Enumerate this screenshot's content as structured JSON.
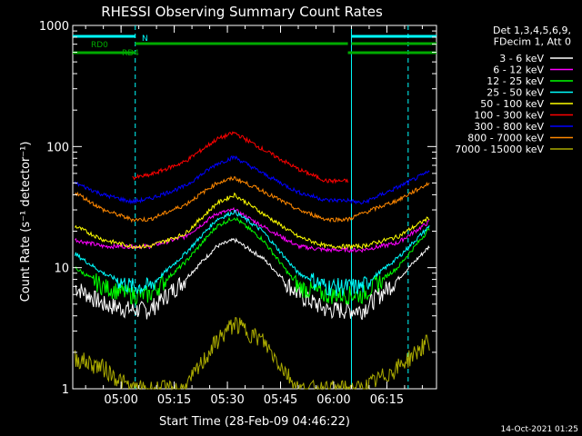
{
  "chart_data": {
    "type": "line",
    "title": "RHESSI Observing Summary Count Rates",
    "xlabel": "Start Time (28-Feb-09 04:46:22)",
    "ylabel": "Count Rate (s⁻¹ detector⁻¹)",
    "yscale": "log",
    "ylim": [
      1,
      1000
    ],
    "xlim": [
      "04:46:22",
      "06:29:00"
    ],
    "x_ticks": [
      "05:00",
      "05:15",
      "05:30",
      "05:45",
      "06:00",
      "06:15"
    ],
    "y_ticks": [
      "1",
      "10",
      "100",
      "1000"
    ],
    "footer_date": "14-Oct-2021 01:25",
    "legend": {
      "placement": "right",
      "header": [
        "Det 1,3,4,5,6,9,",
        "FDecim 1, Att 0"
      ]
    },
    "flags": [
      {
        "label": "N",
        "color": "#00ffff",
        "segments": [
          [
            "04:46:22",
            "05:04:00"
          ],
          [
            "06:05:00",
            "06:29:00"
          ]
        ]
      },
      {
        "label": "RD0",
        "color": "#00aa00",
        "segments": [
          [
            "05:04:00",
            "06:04:00"
          ],
          [
            "06:05:00",
            "06:29:00"
          ]
        ]
      },
      {
        "label": "RD4",
        "color": "#00aa00",
        "segments": [
          [
            "04:46:22",
            "05:04:00"
          ],
          [
            "06:04:00",
            "06:29:00"
          ]
        ]
      }
    ],
    "vlines": [
      {
        "time": "05:04:00",
        "style": "dashed"
      },
      {
        "time": "06:05:00",
        "style": "solid"
      },
      {
        "time": "06:21:00",
        "style": "dashed"
      }
    ],
    "series": [
      {
        "name": "3 - 6 keV",
        "color": "#ffffff",
        "values": [
          7,
          5,
          4.5,
          4.5,
          8,
          15,
          17,
          12,
          6,
          4.5,
          4.5,
          4.5,
          8,
          15
        ]
      },
      {
        "name": "6 - 12 keV",
        "color": "#ff00ff",
        "values": [
          17,
          15,
          15,
          15,
          18,
          28,
          30,
          22,
          15,
          14,
          14,
          14,
          16,
          24
        ]
      },
      {
        "name": "12 - 25 keV",
        "color": "#00ff00",
        "values": [
          10,
          7,
          6,
          6,
          11,
          22,
          26,
          17,
          7,
          6,
          6,
          6,
          10,
          21
        ]
      },
      {
        "name": "25 - 50 keV",
        "color": "#00ffff",
        "values": [
          13,
          9,
          7,
          7,
          13,
          25,
          29,
          20,
          9,
          7,
          7,
          7,
          12,
          22
        ]
      },
      {
        "name": "50 - 100 keV",
        "color": "#ffff00",
        "values": [
          22,
          17,
          15,
          15,
          19,
          34,
          40,
          28,
          18,
          15,
          15,
          15,
          18,
          26
        ]
      },
      {
        "name": "100 - 300 keV",
        "color": "#ff0000",
        "values": [
          null,
          null,
          55,
          58,
          75,
          115,
          130,
          95,
          65,
          52,
          52,
          null,
          null,
          null
        ]
      },
      {
        "name": "300 - 800 keV",
        "color": "#0000ff",
        "values": [
          50,
          40,
          35,
          37,
          47,
          72,
          82,
          60,
          42,
          36,
          36,
          34,
          46,
          62
        ]
      },
      {
        "name": "800 - 7000 keV",
        "color": "#ff8800",
        "values": [
          42,
          30,
          25,
          25,
          33,
          50,
          55,
          43,
          30,
          25,
          25,
          28,
          36,
          50
        ]
      },
      {
        "name": "7000 - 15000 keV",
        "color": "#aaaa00",
        "values": [
          1.8,
          1.5,
          1,
          1,
          1,
          2.5,
          3.5,
          2.5,
          1,
          1,
          1,
          1,
          1.5,
          2.5
        ]
      }
    ],
    "x": [
      "04:47",
      "04:55",
      "05:03",
      "05:08",
      "05:18",
      "05:27",
      "05:32",
      "05:40",
      "05:50",
      "05:58",
      "06:04",
      "06:08",
      "06:18",
      "06:27"
    ]
  }
}
